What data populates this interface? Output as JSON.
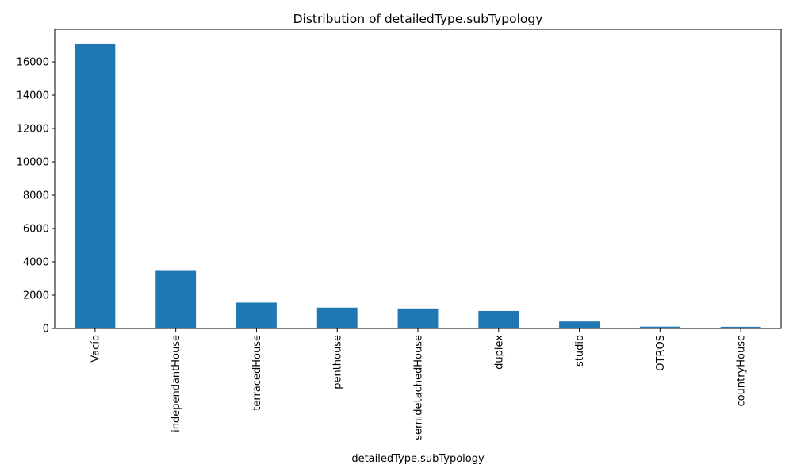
{
  "chart_data": {
    "type": "bar",
    "title": "Distribution of detailedType.subTypology",
    "xlabel": "detailedType.subTypology",
    "ylabel": "",
    "categories": [
      "Vacío",
      "independantHouse",
      "terracedHouse",
      "penthouse",
      "semidetachedHouse",
      "duplex",
      "studio",
      "OTROS",
      "countryHouse"
    ],
    "values": [
      17100,
      3500,
      1550,
      1250,
      1200,
      1050,
      420,
      110,
      100
    ],
    "ylim": [
      0,
      17955
    ],
    "yticks": [
      0,
      2000,
      4000,
      6000,
      8000,
      10000,
      12000,
      14000,
      16000
    ],
    "bar_color": "#1f77b4",
    "grid": false,
    "legend": "none"
  }
}
